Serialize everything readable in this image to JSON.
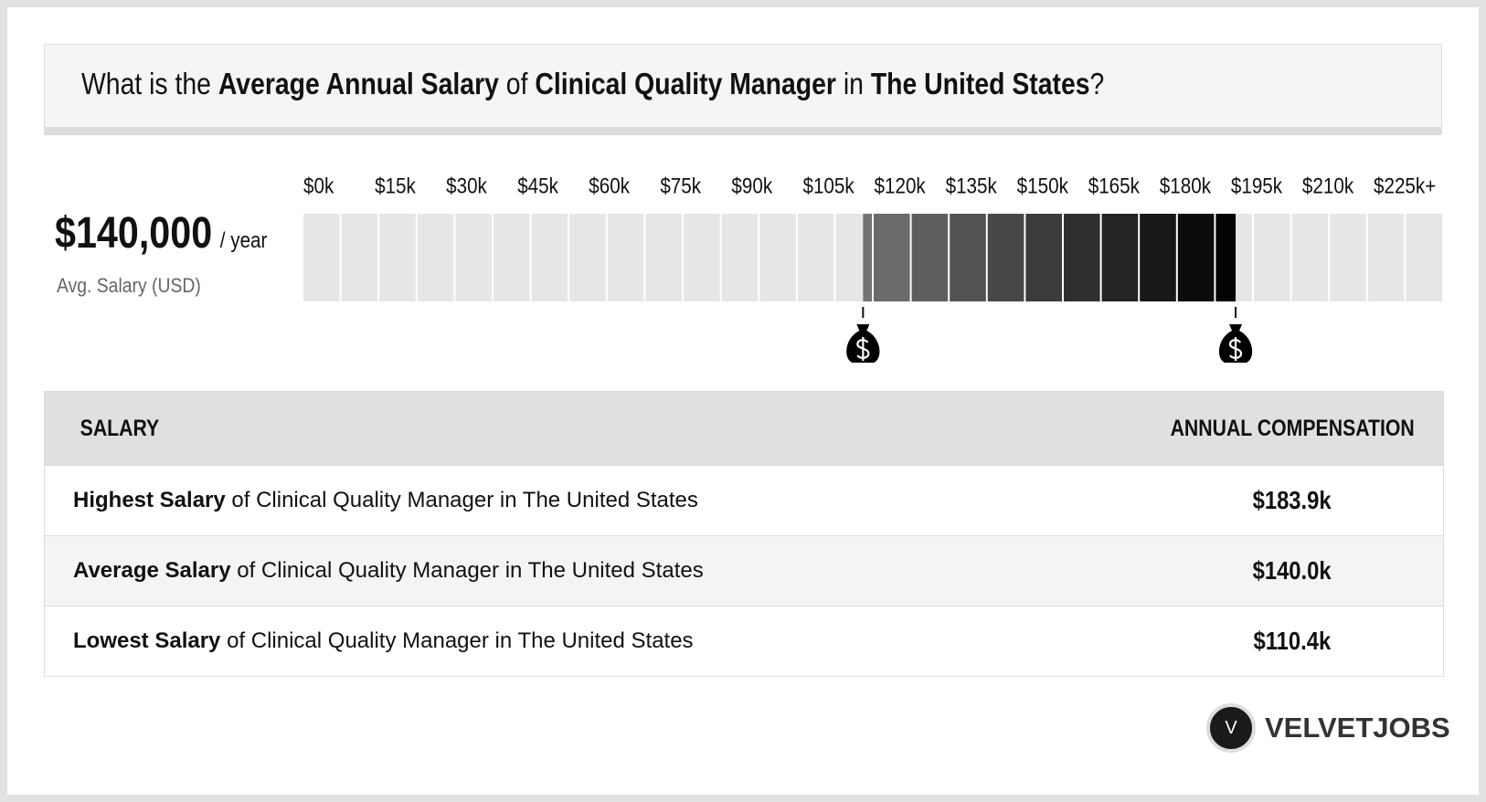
{
  "header": {
    "title": [
      "What is the ",
      "Average Annual Salary",
      " of ",
      "Clinical Quality Manager",
      " in ",
      "The United States",
      "?"
    ]
  },
  "summary": {
    "amount": "$140,000",
    "unit": "/ year",
    "caption": "Avg. Salary (USD)"
  },
  "scale": {
    "xlim": [
      0,
      225
    ],
    "ticks": [
      {
        "value": 0,
        "label": "$0k"
      },
      {
        "value": 15,
        "label": "$15k"
      },
      {
        "value": 30,
        "label": "$30k"
      },
      {
        "value": 45,
        "label": "$45k"
      },
      {
        "value": 60,
        "label": "$60k"
      },
      {
        "value": 75,
        "label": "$75k"
      },
      {
        "value": 90,
        "label": "$90k"
      },
      {
        "value": 105,
        "label": "$105k"
      },
      {
        "value": 120,
        "label": "$120k"
      },
      {
        "value": 135,
        "label": "$135k"
      },
      {
        "value": 150,
        "label": "$150k"
      },
      {
        "value": 165,
        "label": "$165k"
      },
      {
        "value": 180,
        "label": "$180k"
      },
      {
        "value": 195,
        "label": "$195k"
      },
      {
        "value": 210,
        "label": "$210k"
      },
      {
        "value": 225,
        "label": "$225k+"
      }
    ]
  },
  "table": {
    "headers": [
      "SALARY",
      "ANNUAL COMPENSATION"
    ],
    "rows": [
      {
        "bold": "Highest Salary",
        "rest": " of Clinical Quality Manager in The United States",
        "value": {
          "value": 183.9,
          "label": "$183.9k"
        }
      },
      {
        "bold": "Average Salary",
        "rest": " of Clinical Quality Manager in The United States",
        "value": {
          "value": 140.0,
          "label": "$140.0k"
        }
      },
      {
        "bold": "Lowest Salary",
        "rest": " of Clinical Quality Manager in The United States",
        "value": {
          "value": 110.4,
          "label": "$110.4k"
        }
      }
    ]
  },
  "brand": {
    "logo": "V",
    "name": "VELVETJOBS"
  }
}
